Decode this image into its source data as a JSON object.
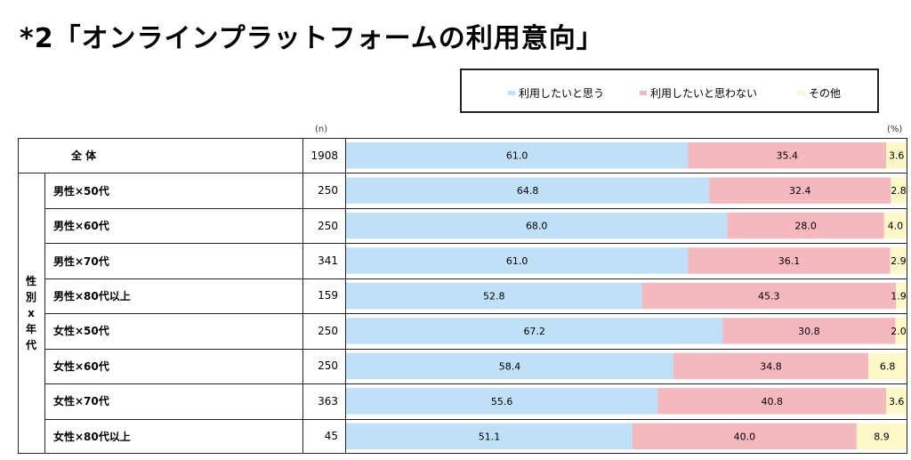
{
  "title": "*2「オンラインプラットフォームの利用意向」",
  "legend": [
    {
      "label": "利用したいと思う",
      "color": "#bfe0f7"
    },
    {
      "label": "利用したいと思わない",
      "color": "#f5b8be"
    },
    {
      "label": "その他",
      "color": "#fdf8c8"
    }
  ],
  "n_unit": "(n)",
  "pct_unit": "(%)",
  "group_label": [
    "性",
    "別",
    "x",
    "年",
    "代"
  ],
  "chart_data": {
    "type": "bar",
    "orientation": "horizontal",
    "stacked": true,
    "percent": true,
    "categories": [
      "全 体",
      "男性×50代",
      "男性×60代",
      "男性×70代",
      "男性×80代以上",
      "女性×50代",
      "女性×60代",
      "女性×70代",
      "女性×80代以上"
    ],
    "n": [
      "1908",
      "250",
      "250",
      "341",
      "159",
      "250",
      "250",
      "363",
      "45"
    ],
    "series": [
      {
        "name": "利用したいと思う",
        "values": [
          61.0,
          64.8,
          68.0,
          61.0,
          52.8,
          67.2,
          58.4,
          55.6,
          51.1
        ]
      },
      {
        "name": "利用したいと思わない",
        "values": [
          35.4,
          32.4,
          28.0,
          36.1,
          45.3,
          30.8,
          34.8,
          40.8,
          40.0
        ]
      },
      {
        "name": "その他",
        "values": [
          3.6,
          2.8,
          4.0,
          2.9,
          1.9,
          2.0,
          6.8,
          3.6,
          8.9
        ]
      }
    ],
    "xlim": [
      0,
      100
    ],
    "colors": [
      "#bfe0f7",
      "#f5b8be",
      "#fdf8c8"
    ]
  }
}
